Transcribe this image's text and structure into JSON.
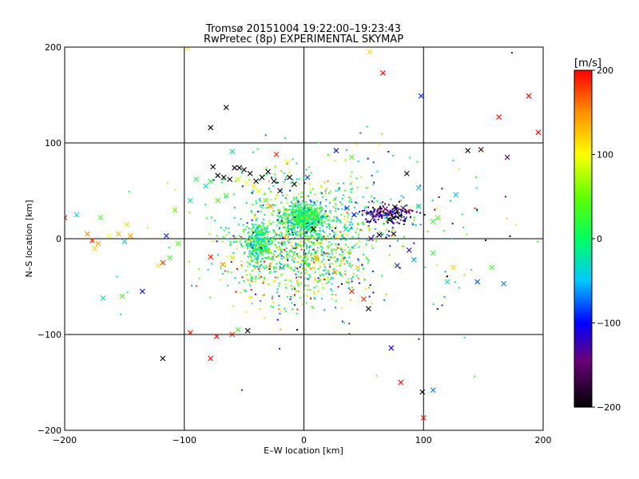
{
  "chart_data": {
    "type": "scatter",
    "title": "Tromsø 20151004  19:22:00–19:23:43",
    "subtitle": "RwPretec (8p) EXPERIMENTAL SKYMAP",
    "xlabel": "E–W location [km]",
    "ylabel": "N–S location [km]",
    "xlim": [
      -200,
      200
    ],
    "ylim": [
      -200,
      200
    ],
    "xticks": [
      -200,
      -100,
      0,
      100,
      200
    ],
    "yticks": [
      -200,
      -100,
      0,
      100,
      200
    ],
    "grid": true,
    "colorbar": {
      "label": "[m/s]",
      "range": [
        -200,
        200
      ],
      "ticks": [
        200,
        100,
        0,
        -100,
        -200
      ],
      "colormap": "black-purple-blue-cyan-green-yellow-red"
    },
    "markers": [
      {
        "x": 55,
        "y": 195,
        "v": 120
      },
      {
        "x": 66,
        "y": 173,
        "v": 200
      },
      {
        "x": 98,
        "y": 149,
        "v": -90
      },
      {
        "x": 188,
        "y": 149,
        "v": 200
      },
      {
        "x": 163,
        "y": 127,
        "v": 200
      },
      {
        "x": 196,
        "y": 111,
        "v": 200
      },
      {
        "x": -65,
        "y": 137,
        "v": -200
      },
      {
        "x": -78,
        "y": 116,
        "v": -200
      },
      {
        "x": -97,
        "y": 199,
        "v": 110
      },
      {
        "x": -60,
        "y": 91,
        "v": -20
      },
      {
        "x": -23,
        "y": 88,
        "v": 190
      },
      {
        "x": -14,
        "y": 80,
        "v": 100
      },
      {
        "x": 27,
        "y": 92,
        "v": -100
      },
      {
        "x": 40,
        "y": 85,
        "v": 40
      },
      {
        "x": 137,
        "y": 92,
        "v": -200
      },
      {
        "x": 148,
        "y": 93,
        "v": -180
      },
      {
        "x": 170,
        "y": 85,
        "v": -170
      },
      {
        "x": 86,
        "y": 68,
        "v": -200
      },
      {
        "x": 96,
        "y": 53,
        "v": -50
      },
      {
        "x": 127,
        "y": 46,
        "v": -50
      },
      {
        "x": 3,
        "y": 64,
        "v": -80
      },
      {
        "x": -76,
        "y": 75,
        "v": -200
      },
      {
        "x": -72,
        "y": 66,
        "v": -200
      },
      {
        "x": -67,
        "y": 64,
        "v": -200
      },
      {
        "x": -62,
        "y": 62,
        "v": -200
      },
      {
        "x": -58,
        "y": 74,
        "v": -200
      },
      {
        "x": -54,
        "y": 74,
        "v": -200
      },
      {
        "x": -50,
        "y": 72,
        "v": -200
      },
      {
        "x": -45,
        "y": 68,
        "v": -200
      },
      {
        "x": -40,
        "y": 60,
        "v": -200
      },
      {
        "x": -35,
        "y": 64,
        "v": -200
      },
      {
        "x": -30,
        "y": 70,
        "v": -200
      },
      {
        "x": -25,
        "y": 60,
        "v": -200
      },
      {
        "x": -20,
        "y": 50,
        "v": -200
      },
      {
        "x": -12,
        "y": 64,
        "v": -200
      },
      {
        "x": -8,
        "y": 57,
        "v": -200
      },
      {
        "x": -55,
        "y": 62,
        "v": 80
      },
      {
        "x": -48,
        "y": 58,
        "v": 100
      },
      {
        "x": -42,
        "y": 55,
        "v": 110
      },
      {
        "x": -38,
        "y": 50,
        "v": 90
      },
      {
        "x": -78,
        "y": 60,
        "v": 20
      },
      {
        "x": -82,
        "y": 55,
        "v": -30
      },
      {
        "x": -90,
        "y": 62,
        "v": 10
      },
      {
        "x": -95,
        "y": 40,
        "v": -20
      },
      {
        "x": -32,
        "y": 40,
        "v": 50
      },
      {
        "x": -28,
        "y": 34,
        "v": 150
      },
      {
        "x": -65,
        "y": 45,
        "v": 30
      },
      {
        "x": -72,
        "y": 40,
        "v": 40
      },
      {
        "x": -108,
        "y": 30,
        "v": 50
      },
      {
        "x": 63,
        "y": 26,
        "v": -150
      },
      {
        "x": 68,
        "y": 31,
        "v": -160
      },
      {
        "x": 72,
        "y": 27,
        "v": -180
      },
      {
        "x": 75,
        "y": 22,
        "v": -200
      },
      {
        "x": 78,
        "y": 29,
        "v": -190
      },
      {
        "x": 80,
        "y": 24,
        "v": -200
      },
      {
        "x": 83,
        "y": 32,
        "v": -170
      },
      {
        "x": 87,
        "y": 28,
        "v": -160
      },
      {
        "x": 58,
        "y": 22,
        "v": -140
      },
      {
        "x": 54,
        "y": 27,
        "v": -120
      },
      {
        "x": 42,
        "y": 25,
        "v": -100
      },
      {
        "x": 36,
        "y": 32,
        "v": -80
      },
      {
        "x": 71,
        "y": 20,
        "v": -200
      },
      {
        "x": 76,
        "y": 33,
        "v": -200
      },
      {
        "x": 96,
        "y": 34,
        "v": -30
      },
      {
        "x": 112,
        "y": 22,
        "v": 40
      },
      {
        "x": 108,
        "y": 18,
        "v": 20
      },
      {
        "x": -190,
        "y": 25,
        "v": -40
      },
      {
        "x": -200,
        "y": 22,
        "v": 200
      },
      {
        "x": -181,
        "y": 5,
        "v": 150
      },
      {
        "x": -177,
        "y": -2,
        "v": 190
      },
      {
        "x": -172,
        "y": -5,
        "v": 140
      },
      {
        "x": -175,
        "y": -10,
        "v": 120
      },
      {
        "x": -170,
        "y": 22,
        "v": 40
      },
      {
        "x": -163,
        "y": 3,
        "v": 100
      },
      {
        "x": -155,
        "y": 5,
        "v": 130
      },
      {
        "x": -148,
        "y": 15,
        "v": 120
      },
      {
        "x": -145,
        "y": 3,
        "v": 140
      },
      {
        "x": -150,
        "y": -3,
        "v": -40
      },
      {
        "x": -118,
        "y": -25,
        "v": 180
      },
      {
        "x": -112,
        "y": -20,
        "v": 30
      },
      {
        "x": -115,
        "y": 3,
        "v": -90
      },
      {
        "x": -122,
        "y": -28,
        "v": 110
      },
      {
        "x": -105,
        "y": -5,
        "v": 40
      },
      {
        "x": -135,
        "y": -55,
        "v": -110
      },
      {
        "x": -152,
        "y": -60,
        "v": 40
      },
      {
        "x": -168,
        "y": -62,
        "v": -20
      },
      {
        "x": -78,
        "y": -19,
        "v": 190
      },
      {
        "x": -68,
        "y": -27,
        "v": 150
      },
      {
        "x": -60,
        "y": -20,
        "v": 80
      },
      {
        "x": -95,
        "y": -98,
        "v": 200
      },
      {
        "x": -73,
        "y": -102,
        "v": 200
      },
      {
        "x": -60,
        "y": -100,
        "v": 190
      },
      {
        "x": -55,
        "y": -95,
        "v": 30
      },
      {
        "x": -47,
        "y": -96,
        "v": -200
      },
      {
        "x": -118,
        "y": -125,
        "v": -200
      },
      {
        "x": -78,
        "y": -125,
        "v": 200
      },
      {
        "x": 8,
        "y": 10,
        "v": -200
      },
      {
        "x": 12,
        "y": 2,
        "v": -10
      },
      {
        "x": 40,
        "y": -55,
        "v": 190
      },
      {
        "x": 50,
        "y": -63,
        "v": 190
      },
      {
        "x": 54,
        "y": -73,
        "v": -200
      },
      {
        "x": 26,
        "y": -35,
        "v": 150
      },
      {
        "x": 10,
        "y": -20,
        "v": 140
      },
      {
        "x": 45,
        "y": -30,
        "v": 130
      },
      {
        "x": 75,
        "y": 5,
        "v": -200
      },
      {
        "x": 88,
        "y": -12,
        "v": -140
      },
      {
        "x": 92,
        "y": -22,
        "v": -60
      },
      {
        "x": 78,
        "y": -28,
        "v": -90
      },
      {
        "x": 108,
        "y": -15,
        "v": 20
      },
      {
        "x": 120,
        "y": -45,
        "v": -40
      },
      {
        "x": 145,
        "y": -45,
        "v": -80
      },
      {
        "x": 157,
        "y": -30,
        "v": 30
      },
      {
        "x": 167,
        "y": -47,
        "v": -70
      },
      {
        "x": 73,
        "y": -114,
        "v": -120
      },
      {
        "x": 81,
        "y": -150,
        "v": 200
      },
      {
        "x": 99,
        "y": -160,
        "v": -200
      },
      {
        "x": 108,
        "y": -158,
        "v": -70
      },
      {
        "x": 100,
        "y": -187,
        "v": 200
      },
      {
        "x": 125,
        "y": -30,
        "v": 120
      },
      {
        "x": 56,
        "y": 0,
        "v": -150
      },
      {
        "x": 63,
        "y": 4,
        "v": -190
      },
      {
        "x": 35,
        "y": 10,
        "v": -40
      },
      {
        "x": -12,
        "y": 18,
        "v": -60
      }
    ],
    "dots": {
      "count": 2300,
      "clusters": [
        {
          "x": 0,
          "y": 22,
          "sx": 9,
          "sy": 7,
          "v": 0,
          "vs": 25,
          "weight": 0.22
        },
        {
          "x": -38,
          "y": -5,
          "sx": 5,
          "sy": 11,
          "v": -10,
          "vs": 25,
          "weight": 0.14
        },
        {
          "x": 2,
          "y": 0,
          "sx": 28,
          "sy": 28,
          "v": 10,
          "vs": 60,
          "weight": 0.32
        },
        {
          "x": -10,
          "y": -30,
          "sx": 28,
          "sy": 22,
          "v": 70,
          "vs": 80,
          "weight": 0.12
        },
        {
          "x": 70,
          "y": 25,
          "sx": 12,
          "sy": 5,
          "v": -150,
          "vs": 40,
          "weight": 0.06
        },
        {
          "x": 20,
          "y": 40,
          "sx": 55,
          "sy": 25,
          "v": 0,
          "vs": 70,
          "weight": 0.08
        },
        {
          "x": 40,
          "y": -20,
          "sx": 70,
          "sy": 50,
          "v": -50,
          "vs": 100,
          "weight": 0.06
        }
      ]
    }
  }
}
